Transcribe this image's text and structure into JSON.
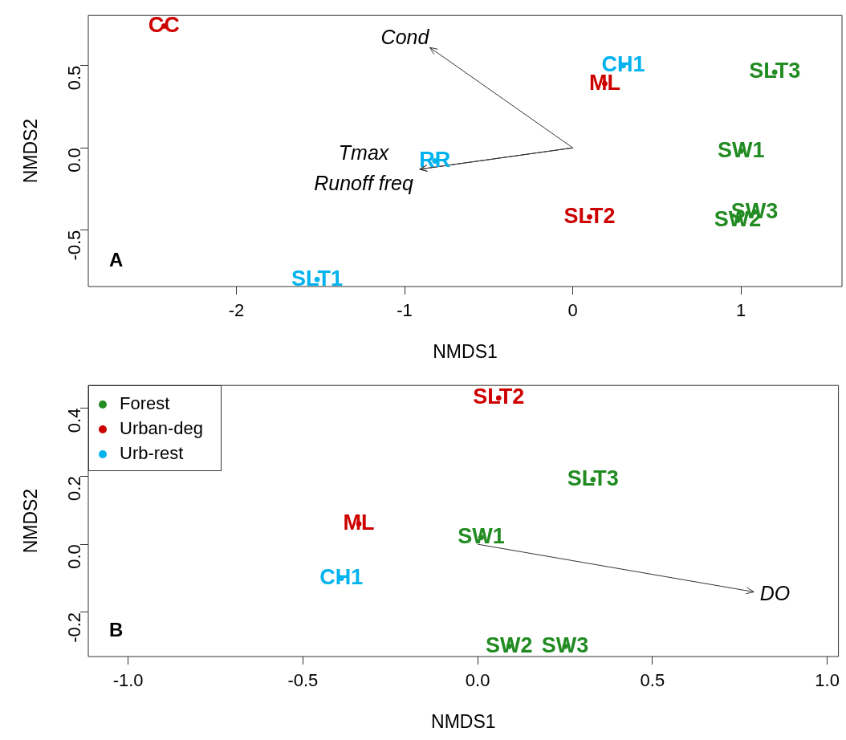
{
  "chart_data": [
    {
      "type": "scatter",
      "xlabel": "NMDS1",
      "ylabel": "NMDS2",
      "xlim": [
        -2.88,
        1.6
      ],
      "ylim": [
        -0.843,
        0.805
      ],
      "xticks": [
        -2,
        -1,
        0,
        1
      ],
      "yticks": [
        -0.5,
        {
          "value": 0,
          "label": "0.0"
        },
        0.5
      ],
      "grid": false,
      "legend": false,
      "marker": "circle",
      "series": [
        {
          "color": "#228b22",
          "x": [
            1.2,
            1.0,
            1.08,
            0.98
          ],
          "values": [
            0.46,
            -0.02,
            -0.39,
            -0.44
          ],
          "value_labels": [
            "SLT3",
            "SW1",
            "SW3",
            "SW2"
          ]
        },
        {
          "color": "#cd0000",
          "x": [
            -2.43,
            0.19,
            0.1
          ],
          "values": [
            0.74,
            0.39,
            -0.42
          ],
          "value_labels": [
            "CC",
            "ML",
            "SLT2"
          ]
        },
        {
          "color": "#00b2ee",
          "x": [
            0.3,
            -0.82,
            -1.52
          ],
          "values": [
            0.5,
            -0.08,
            -0.8
          ],
          "value_labels": [
            "CH1",
            "RR",
            "SLT1"
          ]
        },
        {
          "type": "line",
          "marker": "none",
          "color": "#333333",
          "x": [
            0,
            -0.85
          ],
          "values": [
            0,
            0.61
          ]
        },
        {
          "type": "line",
          "marker": "none",
          "color": "#333333",
          "x": [
            0,
            -0.91
          ],
          "values": [
            0,
            -0.13
          ]
        },
        {
          "type": "line",
          "marker": "none",
          "color": "#333333",
          "x": [
            0,
            -0.91
          ],
          "values": [
            0,
            -0.13
          ]
        }
      ],
      "annotations": [
        "A",
        {
          "text": "Cond",
          "x": -0.85,
          "y": 0.61
        },
        {
          "text": "Tmax",
          "x": -0.91,
          "y": -0.13
        },
        {
          "text": "Runoff freq",
          "x": -0.91,
          "y": -0.13
        }
      ]
    },
    {
      "type": "scatter",
      "xlabel": "NMDS1",
      "ylabel": "NMDS2",
      "xlim": [
        -1.114,
        1.032
      ],
      "ylim": [
        -0.33,
        0.467
      ],
      "xticks": [
        {
          "value": -1,
          "label": "-1.0"
        },
        -0.5,
        {
          "value": 0,
          "label": "0.0"
        },
        0.5,
        {
          "value": 1,
          "label": "1.0"
        }
      ],
      "yticks": [
        -0.2,
        {
          "value": 0,
          "label": "0.0"
        },
        0.2,
        0.4
      ],
      "grid": false,
      "legend": "top left",
      "marker": "circle",
      "series": [
        {
          "name": "Forest",
          "color": "#228b22",
          "x": [
            0.33,
            0.01,
            0.09,
            0.25
          ],
          "values": [
            0.19,
            0.02,
            -0.3,
            -0.3
          ],
          "value_labels": [
            "SLT3",
            "SW1",
            "SW2",
            "SW3"
          ]
        },
        {
          "name": "Urban-deg",
          "color": "#cd0000",
          "x": [
            0.06,
            -0.34
          ],
          "values": [
            0.43,
            0.06
          ],
          "value_labels": [
            "SLT2",
            "ML"
          ]
        },
        {
          "name": "Urb-rest",
          "color": "#00b2ee",
          "x": [
            -0.39
          ],
          "values": [
            -0.1
          ],
          "value_labels": [
            "CH1"
          ]
        },
        {
          "type": "line",
          "marker": "none",
          "color": "#333333",
          "x": [
            0,
            0.79
          ],
          "values": [
            0,
            -0.14
          ]
        }
      ],
      "annotations": [
        "B",
        {
          "text": "DO",
          "x": 0.79,
          "y": -0.14
        }
      ]
    }
  ]
}
